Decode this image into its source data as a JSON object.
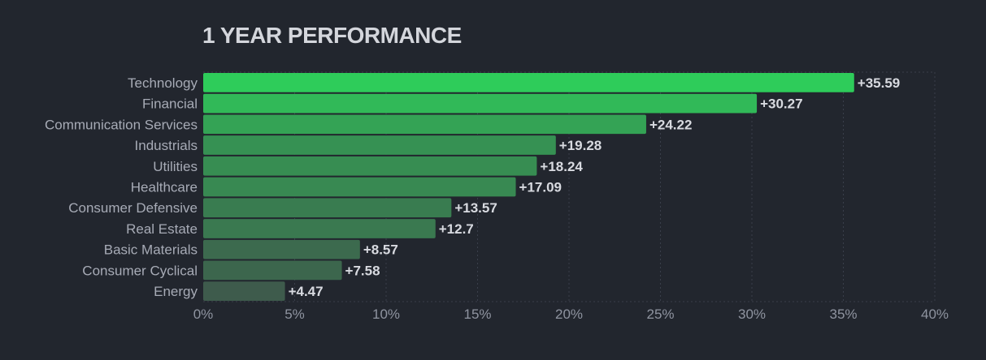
{
  "chart_data": {
    "type": "bar",
    "orientation": "horizontal",
    "title": "1 YEAR PERFORMANCE",
    "xlabel": "",
    "ylabel": "",
    "categories": [
      "Technology",
      "Financial",
      "Communication Services",
      "Industrials",
      "Utilities",
      "Healthcare",
      "Consumer Defensive",
      "Real Estate",
      "Basic Materials",
      "Consumer Cyclical",
      "Energy"
    ],
    "values": [
      35.59,
      30.27,
      24.22,
      19.28,
      18.24,
      17.09,
      13.57,
      12.7,
      8.57,
      7.58,
      4.47
    ],
    "value_labels": [
      "+35.59",
      "+30.27",
      "+24.22",
      "+19.28",
      "+18.24",
      "+17.09",
      "+13.57",
      "+12.7",
      "+8.57",
      "+7.58",
      "+4.47"
    ],
    "xlim": [
      0,
      40
    ],
    "x_ticks": [
      0,
      5,
      10,
      15,
      20,
      25,
      30,
      35,
      40
    ],
    "x_tick_labels": [
      "0%",
      "5%",
      "10%",
      "15%",
      "20%",
      "25%",
      "30%",
      "35%",
      "40%"
    ],
    "grid": true,
    "legend": "none",
    "colors": {
      "background": "#22262e",
      "bar_high": "#2ecc5a",
      "bar_low": "#3e5b4c",
      "grid": "#3a3f4b"
    }
  }
}
